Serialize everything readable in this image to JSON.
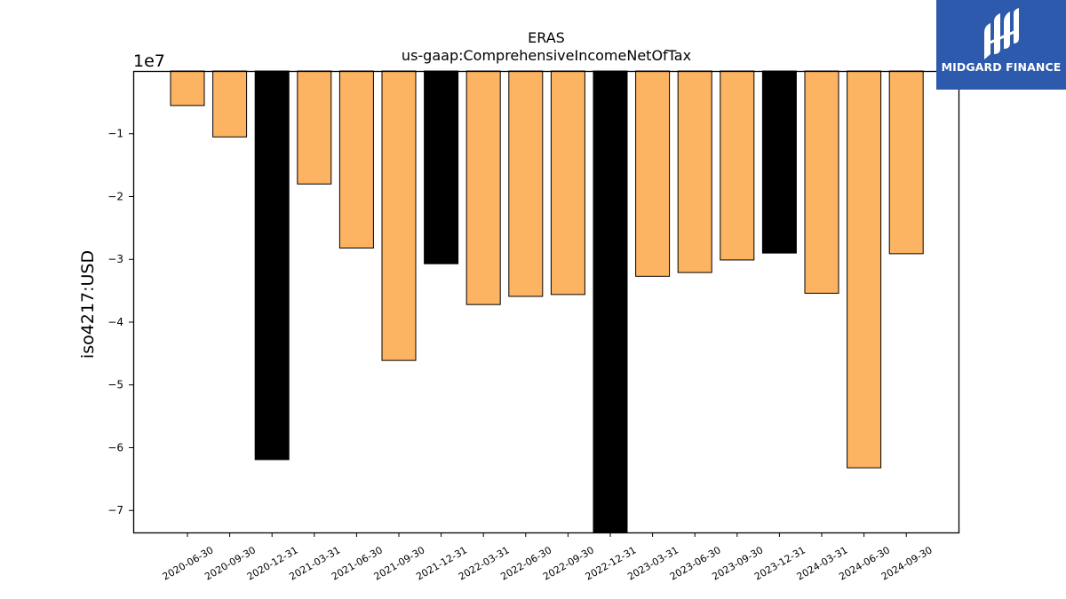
{
  "logo": {
    "text": "MIDGARD FINANCE",
    "background": "#2d5aad"
  },
  "chart_data": {
    "type": "bar",
    "title": "ERAS",
    "subtitle": "us-gaap:ComprehensiveIncomeNetOfTax",
    "ylabel": "iso4217:USD",
    "xlabel": "",
    "y_offset_label": "1e7",
    "ylim": [
      -73500000,
      0
    ],
    "yticks": [
      -10000000,
      -20000000,
      -30000000,
      -40000000,
      -50000000,
      -60000000,
      -70000000
    ],
    "ytick_labels": [
      "−1",
      "−2",
      "−3",
      "−4",
      "−5",
      "−6",
      "−7"
    ],
    "grid": false,
    "categories": [
      "2020-06-30",
      "2020-09-30",
      "2020-12-31",
      "2021-03-31",
      "2021-06-30",
      "2021-09-30",
      "2021-12-31",
      "2022-03-31",
      "2022-06-30",
      "2022-09-30",
      "2022-12-31",
      "2023-03-31",
      "2023-06-30",
      "2023-09-30",
      "2023-12-31",
      "2024-03-31",
      "2024-06-30",
      "2024-09-30"
    ],
    "values": [
      -5500000,
      -10500000,
      -61900000,
      -18000000,
      -28200000,
      -46100000,
      -30700000,
      -37200000,
      -35900000,
      -35600000,
      -73500000,
      -32700000,
      -32100000,
      -30100000,
      -29000000,
      -35400000,
      -63200000,
      -29100000
    ],
    "colors": [
      "#fdb462",
      "#fdb462",
      "#000000",
      "#fdb462",
      "#fdb462",
      "#fdb462",
      "#000000",
      "#fdb462",
      "#fdb462",
      "#fdb462",
      "#000000",
      "#fdb462",
      "#fdb462",
      "#fdb462",
      "#000000",
      "#fdb462",
      "#fdb462",
      "#fdb462"
    ]
  }
}
